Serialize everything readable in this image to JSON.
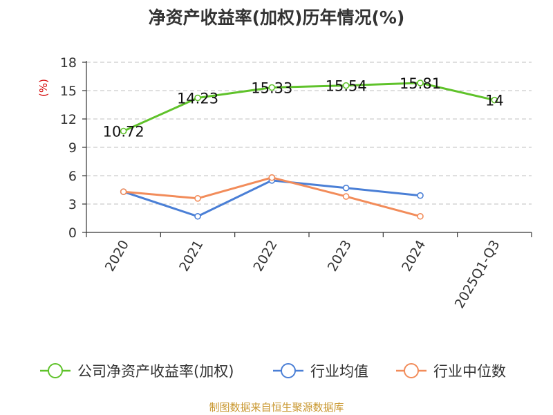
{
  "title": "净资产收益率(加权)历年情况(%)",
  "source": "制图数据来自恒生聚源数据库",
  "chart_data": {
    "type": "line",
    "title": "净资产收益率(加权)历年情况(%)",
    "ylabel": "(%)",
    "xlabel": "",
    "categories": [
      "2020",
      "2021",
      "2022",
      "2023",
      "2024",
      "2025Q1-Q3"
    ],
    "ylim": [
      0,
      18
    ],
    "yticks": [
      0,
      3,
      6,
      9,
      12,
      15,
      18
    ],
    "grid": true,
    "legend_position": "bottom",
    "series": [
      {
        "name": "公司净资产收益率(加权)",
        "color": "#5fc22a",
        "values": [
          10.72,
          14.23,
          15.33,
          15.54,
          15.81,
          14
        ],
        "labels": [
          "10.72",
          "14.23",
          "15.33",
          "15.54",
          "15.81",
          "14"
        ]
      },
      {
        "name": "行业均值",
        "color": "#4a7fd6",
        "values": [
          4.3,
          1.7,
          5.5,
          4.7,
          3.9,
          null
        ]
      },
      {
        "name": "行业中位数",
        "color": "#f28c5a",
        "values": [
          4.3,
          3.6,
          5.8,
          3.8,
          1.7,
          null
        ]
      }
    ]
  }
}
